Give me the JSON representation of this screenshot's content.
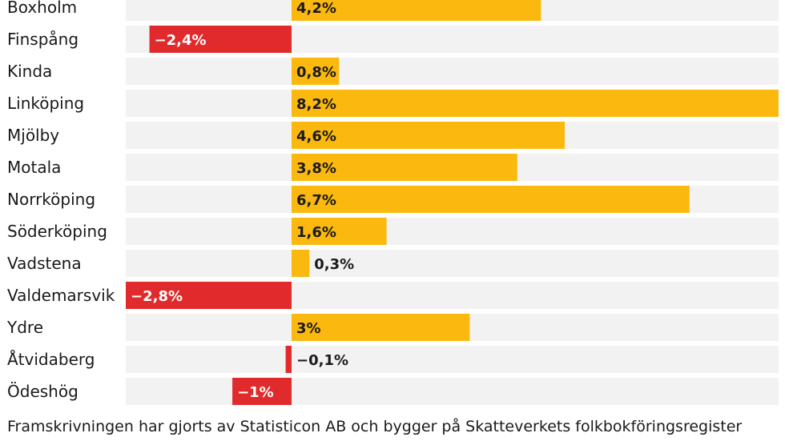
{
  "chart_data": {
    "type": "bar",
    "orientation": "horizontal",
    "categories": [
      "Boxholm",
      "Finspång",
      "Kinda",
      "Linköping",
      "Mjölby",
      "Motala",
      "Norrköping",
      "Söderköping",
      "Vadstena",
      "Valdemarsvik",
      "Ydre",
      "Åtvidaberg",
      "Ödeshög"
    ],
    "values": [
      4.2,
      -2.4,
      0.8,
      8.2,
      4.6,
      3.8,
      6.7,
      1.6,
      0.3,
      -2.8,
      3,
      -0.1,
      -1
    ],
    "value_labels": [
      "4,2%",
      "−2,4%",
      "0,8%",
      "8,2%",
      "4,6%",
      "3,8%",
      "6,7%",
      "1,6%",
      "0,3%",
      "−2,8%",
      "3%",
      "−0,1%",
      "−1%"
    ],
    "xlim": [
      -2.8,
      8.2
    ],
    "grid": false,
    "legend": "none",
    "colors": {
      "positive": "#fbb90f",
      "negative": "#e02a2c",
      "track": "#f2f2f2",
      "label_on_positive": "#1a1a1a",
      "label_on_negative": "#ffffff"
    }
  },
  "footnote": "Framskrivningen har gjorts av Statisticon AB och bygger på Skatteverkets folkbokföringsregister"
}
